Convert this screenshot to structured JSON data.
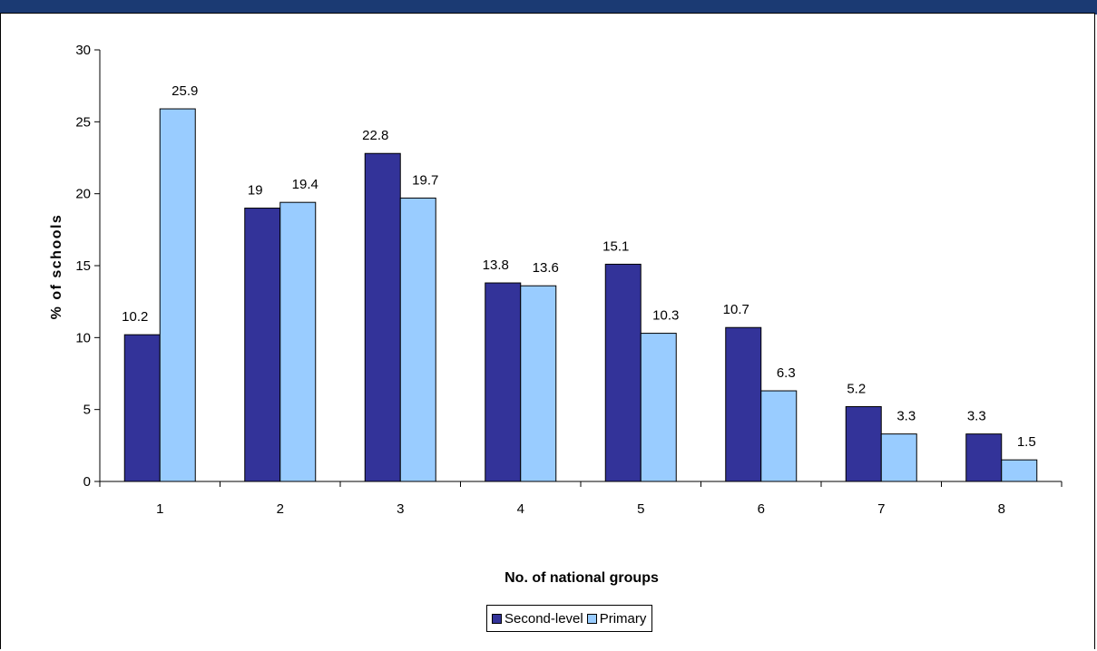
{
  "chart_data": {
    "type": "bar",
    "title": "",
    "xlabel": "No. of national groups",
    "ylabel": "% of schools",
    "categories": [
      "1",
      "2",
      "3",
      "4",
      "5",
      "6",
      "7",
      "8"
    ],
    "series": [
      {
        "name": "Second-level",
        "color": "#333399",
        "values": [
          10.2,
          19,
          22.8,
          13.8,
          15.1,
          10.7,
          5.2,
          3.3
        ]
      },
      {
        "name": "Primary",
        "color": "#99ccff",
        "values": [
          25.9,
          19.4,
          19.7,
          13.6,
          10.3,
          6.3,
          3.3,
          1.5
        ]
      }
    ],
    "ylim": [
      0,
      30
    ],
    "yticks": [
      0,
      5,
      10,
      15,
      20,
      25,
      30
    ],
    "grid": false,
    "legend_position": "bottom"
  }
}
